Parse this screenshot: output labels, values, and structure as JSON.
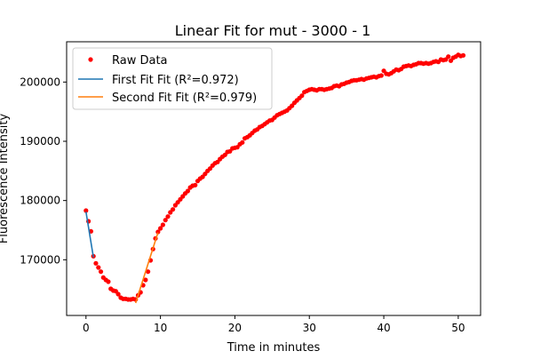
{
  "colors": {
    "raw": "#ff0000",
    "first_fit": "#1f77b4",
    "second_fit": "#ff7f0e",
    "axes": "#000000",
    "background": "#ffffff"
  },
  "chart_data": {
    "type": "scatter",
    "title": "Linear Fit for mut - 3000 - 1",
    "xlabel": "Time in minutes",
    "ylabel": "Fluorescence Intensity",
    "xlim": [
      -2.6,
      53.0
    ],
    "ylim": [
      160600,
      206800
    ],
    "xticks": [
      0,
      10,
      20,
      30,
      40,
      50
    ],
    "xtick_labels": [
      "0",
      "10",
      "20",
      "30",
      "40",
      "50"
    ],
    "yticks": [
      170000,
      180000,
      190000,
      200000
    ],
    "ytick_labels": [
      "170000",
      "180000",
      "190000",
      "200000"
    ],
    "grid": false,
    "legend_position": "top-left",
    "series": [
      {
        "name": "Raw Data",
        "kind": "scatter",
        "points": [
          [
            0.0,
            178300
          ],
          [
            0.33,
            176500
          ],
          [
            0.67,
            174800
          ],
          [
            1.0,
            170600
          ],
          [
            1.33,
            169400
          ],
          [
            1.67,
            168700
          ],
          [
            2.0,
            168000
          ],
          [
            2.33,
            167000
          ],
          [
            2.67,
            166600
          ],
          [
            3.0,
            166300
          ],
          [
            3.33,
            165100
          ],
          [
            3.67,
            164800
          ],
          [
            4.0,
            164700
          ],
          [
            4.33,
            164200
          ],
          [
            4.67,
            163600
          ],
          [
            5.0,
            163400
          ],
          [
            5.33,
            163400
          ],
          [
            5.67,
            163300
          ],
          [
            6.0,
            163300
          ],
          [
            6.33,
            163400
          ],
          [
            6.67,
            163300
          ],
          [
            7.0,
            164000
          ],
          [
            7.33,
            164500
          ],
          [
            7.67,
            165700
          ],
          [
            8.0,
            166600
          ],
          [
            8.33,
            168000
          ],
          [
            8.67,
            169900
          ],
          [
            9.0,
            171800
          ],
          [
            9.33,
            173600
          ],
          [
            9.67,
            174700
          ],
          [
            10.0,
            175300
          ],
          [
            10.33,
            175900
          ],
          [
            10.67,
            176700
          ],
          [
            11.0,
            177300
          ],
          [
            11.33,
            178000
          ],
          [
            11.67,
            178500
          ],
          [
            12.0,
            179200
          ],
          [
            12.33,
            179700
          ],
          [
            12.67,
            180200
          ],
          [
            13.0,
            180700
          ],
          [
            13.33,
            181200
          ],
          [
            13.67,
            181600
          ],
          [
            14.0,
            182200
          ],
          [
            14.33,
            182500
          ],
          [
            14.67,
            182600
          ],
          [
            15.0,
            183300
          ],
          [
            15.33,
            183700
          ],
          [
            15.67,
            184000
          ],
          [
            16.0,
            184500
          ],
          [
            16.33,
            185000
          ],
          [
            16.67,
            185400
          ],
          [
            17.0,
            185900
          ],
          [
            17.33,
            186300
          ],
          [
            17.67,
            186500
          ],
          [
            18.0,
            187000
          ],
          [
            18.33,
            187400
          ],
          [
            18.67,
            187700
          ],
          [
            19.0,
            188200
          ],
          [
            19.33,
            188300
          ],
          [
            19.67,
            188800
          ],
          [
            20.0,
            188900
          ],
          [
            20.33,
            189000
          ],
          [
            20.67,
            189500
          ],
          [
            21.0,
            189800
          ],
          [
            21.33,
            190500
          ],
          [
            21.67,
            190700
          ],
          [
            22.0,
            191000
          ],
          [
            22.33,
            191400
          ],
          [
            22.67,
            191800
          ],
          [
            23.0,
            192000
          ],
          [
            23.33,
            192400
          ],
          [
            23.67,
            192600
          ],
          [
            24.0,
            192900
          ],
          [
            24.33,
            193200
          ],
          [
            24.67,
            193500
          ],
          [
            25.0,
            193600
          ],
          [
            25.33,
            194000
          ],
          [
            25.67,
            194400
          ],
          [
            26.0,
            194600
          ],
          [
            26.33,
            194800
          ],
          [
            26.67,
            195000
          ],
          [
            27.0,
            195200
          ],
          [
            27.33,
            195600
          ],
          [
            27.67,
            196000
          ],
          [
            28.0,
            196500
          ],
          [
            28.33,
            196900
          ],
          [
            28.67,
            197300
          ],
          [
            29.0,
            197700
          ],
          [
            29.33,
            198300
          ],
          [
            29.67,
            198500
          ],
          [
            30.0,
            198700
          ],
          [
            30.33,
            198800
          ],
          [
            30.67,
            198700
          ],
          [
            31.0,
            198600
          ],
          [
            31.33,
            198800
          ],
          [
            31.67,
            198800
          ],
          [
            32.0,
            198700
          ],
          [
            32.33,
            198800
          ],
          [
            32.67,
            198900
          ],
          [
            33.0,
            199000
          ],
          [
            33.33,
            199300
          ],
          [
            33.67,
            199400
          ],
          [
            34.0,
            199300
          ],
          [
            34.33,
            199600
          ],
          [
            34.67,
            199700
          ],
          [
            35.0,
            199900
          ],
          [
            35.33,
            200000
          ],
          [
            35.67,
            200200
          ],
          [
            36.0,
            200300
          ],
          [
            36.33,
            200300
          ],
          [
            36.67,
            200400
          ],
          [
            37.0,
            200500
          ],
          [
            37.33,
            200400
          ],
          [
            37.67,
            200600
          ],
          [
            38.0,
            200700
          ],
          [
            38.33,
            200800
          ],
          [
            38.67,
            200900
          ],
          [
            39.0,
            200800
          ],
          [
            39.33,
            201000
          ],
          [
            39.67,
            201100
          ],
          [
            40.0,
            201900
          ],
          [
            40.33,
            201400
          ],
          [
            40.67,
            201300
          ],
          [
            41.0,
            201500
          ],
          [
            41.33,
            201800
          ],
          [
            41.67,
            202100
          ],
          [
            42.0,
            202000
          ],
          [
            42.33,
            202200
          ],
          [
            42.67,
            202600
          ],
          [
            43.0,
            202700
          ],
          [
            43.33,
            202800
          ],
          [
            43.67,
            202700
          ],
          [
            44.0,
            202900
          ],
          [
            44.33,
            203000
          ],
          [
            44.67,
            203200
          ],
          [
            45.0,
            203200
          ],
          [
            45.33,
            203100
          ],
          [
            45.67,
            203200
          ],
          [
            46.0,
            203100
          ],
          [
            46.33,
            203200
          ],
          [
            46.67,
            203400
          ],
          [
            47.0,
            203500
          ],
          [
            47.33,
            203400
          ],
          [
            47.67,
            203800
          ],
          [
            48.0,
            203700
          ],
          [
            48.33,
            203800
          ],
          [
            48.67,
            204300
          ],
          [
            49.0,
            203600
          ],
          [
            49.33,
            204100
          ],
          [
            49.67,
            204300
          ],
          [
            50.0,
            204600
          ],
          [
            50.33,
            204400
          ],
          [
            50.67,
            204500
          ]
        ]
      },
      {
        "name": "First Fit Fit (R²=0.972)",
        "kind": "line",
        "points": [
          [
            0.0,
            178100
          ],
          [
            1.0,
            170400
          ]
        ]
      },
      {
        "name": "Second Fit Fit (R²=0.979)",
        "kind": "line",
        "points": [
          [
            6.67,
            162700
          ],
          [
            9.67,
            174600
          ]
        ]
      }
    ]
  }
}
